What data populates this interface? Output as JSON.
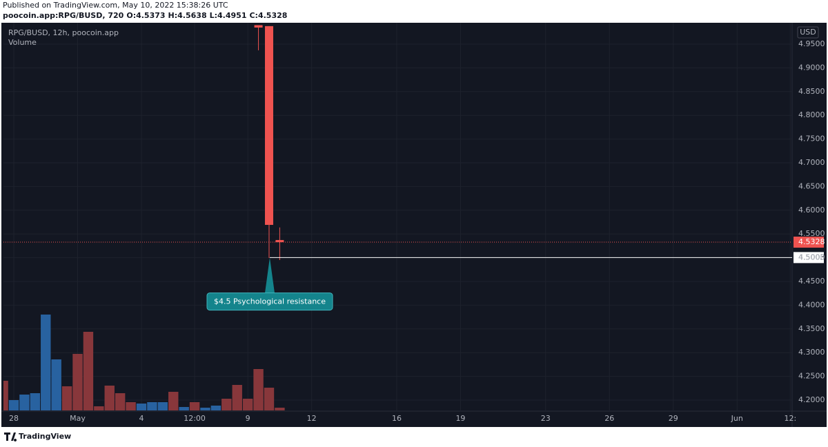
{
  "published": "Published on TradingView.com, May 10, 2022 15:38:26 UTC",
  "footer_brand": "TradingView",
  "chart_data": {
    "type": "candlestick",
    "symbol_header": "poocoin.app:RPG/BUSD, 720",
    "ohlc_prefixes": [
      "O:",
      "H:",
      "L:",
      "C:"
    ],
    "legend_title": "RPG/BUSD, 12h, poocoin.app",
    "volume_title": "Volume",
    "currency": "USD",
    "categories": [
      null,
      "28",
      null,
      null,
      null,
      null,
      null,
      "May",
      null,
      null,
      null,
      null,
      null,
      "4",
      null,
      null,
      null,
      null,
      "12:00",
      null,
      null,
      null,
      null,
      "9",
      null,
      null,
      null,
      null,
      null,
      "12",
      null,
      null,
      null,
      null,
      null,
      null,
      null,
      "16",
      null,
      null,
      null,
      null,
      null,
      "19",
      null,
      null,
      null,
      null,
      null,
      null,
      null,
      "23",
      null,
      null,
      null,
      null,
      null,
      "26",
      null,
      null,
      null,
      null,
      null,
      "29",
      null,
      null,
      null,
      null,
      null,
      "Jun",
      null,
      null,
      null,
      null,
      "12:"
    ],
    "open": [
      null,
      null,
      null,
      null,
      null,
      null,
      null,
      null,
      null,
      null,
      null,
      null,
      null,
      null,
      null,
      null,
      null,
      null,
      null,
      null,
      null,
      null,
      null,
      null,
      4.99,
      4.988,
      4.5373,
      null,
      null,
      null,
      null,
      null,
      null,
      null,
      null,
      null,
      null,
      null,
      null,
      null,
      null,
      null,
      null,
      null,
      null,
      null,
      null,
      null,
      null,
      null,
      null,
      null,
      null,
      null,
      null,
      null,
      null,
      null,
      null,
      null,
      null,
      null,
      null,
      null,
      null,
      null,
      null,
      null,
      null,
      null,
      null,
      null,
      null,
      null,
      null
    ],
    "high": [
      null,
      null,
      null,
      null,
      null,
      null,
      null,
      null,
      null,
      null,
      null,
      null,
      null,
      null,
      null,
      null,
      null,
      null,
      null,
      null,
      null,
      null,
      null,
      null,
      4.99,
      4.988,
      4.5638,
      null,
      null,
      null,
      null,
      null,
      null,
      null,
      null,
      null,
      null,
      null,
      null,
      null,
      null,
      null,
      null,
      null,
      null,
      null,
      null,
      null,
      null,
      null,
      null,
      null,
      null,
      null,
      null,
      null,
      null,
      null,
      null,
      null,
      null,
      null,
      null,
      null,
      null,
      null,
      null,
      null,
      null,
      null,
      null,
      null,
      null,
      null,
      null
    ],
    "low": [
      null,
      null,
      null,
      null,
      null,
      null,
      null,
      null,
      null,
      null,
      null,
      null,
      null,
      null,
      null,
      null,
      null,
      null,
      null,
      null,
      null,
      null,
      null,
      null,
      4.937,
      4.4995,
      4.4951,
      null,
      null,
      null,
      null,
      null,
      null,
      null,
      null,
      null,
      null,
      null,
      null,
      null,
      null,
      null,
      null,
      null,
      null,
      null,
      null,
      null,
      null,
      null,
      null,
      null,
      null,
      null,
      null,
      null,
      null,
      null,
      null,
      null,
      null,
      null,
      null,
      null,
      null,
      null,
      null,
      null,
      null,
      null,
      null,
      null,
      null,
      null,
      null
    ],
    "close": [
      null,
      null,
      null,
      null,
      null,
      null,
      null,
      null,
      null,
      null,
      null,
      null,
      null,
      null,
      null,
      null,
      null,
      null,
      null,
      null,
      null,
      null,
      null,
      null,
      4.985,
      4.5692,
      4.5328,
      null,
      null,
      null,
      null,
      null,
      null,
      null,
      null,
      null,
      null,
      null,
      null,
      null,
      null,
      null,
      null,
      null,
      null,
      null,
      null,
      null,
      null,
      null,
      null,
      null,
      null,
      null,
      null,
      null,
      null,
      null,
      null,
      null,
      null,
      null,
      null,
      null,
      null,
      null,
      null,
      null,
      null,
      null,
      null,
      null,
      null,
      null,
      null
    ],
    "volume": [
      43,
      15,
      23,
      25,
      139,
      74,
      35,
      82,
      114,
      6,
      36,
      25,
      12,
      10,
      12,
      12,
      27,
      5,
      12,
      4,
      7,
      17,
      37,
      17,
      60,
      33,
      4,
      null,
      null,
      null,
      null,
      null,
      null,
      null,
      null,
      null,
      null,
      null,
      null,
      null,
      null,
      null,
      null,
      null,
      null,
      null,
      null,
      null,
      null,
      null,
      null,
      null,
      null,
      null,
      null,
      null,
      null,
      null,
      null,
      null,
      null,
      null,
      null,
      null,
      null,
      null,
      null,
      null,
      null,
      null,
      null,
      null,
      null,
      null,
      null
    ],
    "volume_colors": [
      "#88373b",
      "#2862a0",
      "#2862a0",
      "#2862a0",
      "#2862a0",
      "#2862a0",
      "#88373b",
      "#88373b",
      "#88373b",
      "#88373b",
      "#88373b",
      "#88373b",
      "#88373b",
      "#2862a0",
      "#2862a0",
      "#2862a0",
      "#88373b",
      "#2862a0",
      "#88373b",
      "#2862a0",
      "#2862a0",
      "#88373b",
      "#88373b",
      "#88373b",
      "#88373b",
      "#88373b",
      "#88373b",
      null,
      null,
      null,
      null,
      null,
      null,
      null,
      null,
      null,
      null,
      null,
      null,
      null,
      null,
      null,
      null,
      null,
      null,
      null,
      null,
      null,
      null,
      null,
      null,
      null,
      null,
      null,
      null,
      null,
      null,
      null,
      null,
      null,
      null,
      null,
      null,
      null,
      null,
      null,
      null,
      null,
      null,
      null,
      null,
      null,
      null,
      null,
      null
    ],
    "candle_color": "#ef5350",
    "ylim": [
      4.1782,
      4.9907
    ],
    "yticks": [
      {
        "value": 4.2,
        "label": "4.2000"
      },
      {
        "value": 4.25,
        "label": "4.2500"
      },
      {
        "value": 4.3,
        "label": "4.3000"
      },
      {
        "value": 4.35,
        "label": "4.3500"
      },
      {
        "value": 4.4,
        "label": "4.4000"
      },
      {
        "value": 4.45,
        "label": "4.4500"
      },
      {
        "value": 4.5,
        "label": "4.5000"
      },
      {
        "value": 4.55,
        "label": "4.5500"
      },
      {
        "value": 4.6,
        "label": "4.6000"
      },
      {
        "value": 4.65,
        "label": "4.6500"
      },
      {
        "value": 4.7,
        "label": "4.7000"
      },
      {
        "value": 4.75,
        "label": "4.7500"
      },
      {
        "value": 4.8,
        "label": "4.8000"
      },
      {
        "value": 4.85,
        "label": "4.8500"
      },
      {
        "value": 4.9,
        "label": "4.9000"
      },
      {
        "value": 4.95,
        "label": "4.9500"
      }
    ],
    "grid": true,
    "hline": 4.5003,
    "annotations": [
      {
        "text": "$4.5 Psychological resistance",
        "y": 4.5
      }
    ]
  }
}
